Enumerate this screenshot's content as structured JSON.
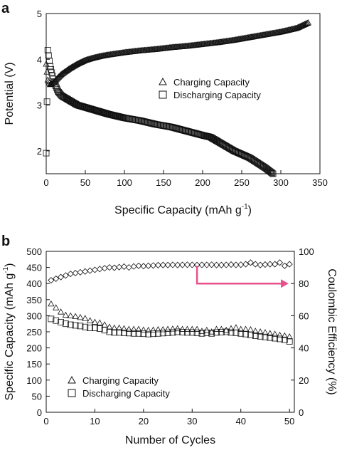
{
  "chart_data": [
    {
      "panel_label": "a",
      "type": "scatter",
      "xlabel": "Specific Capacity (mAh g",
      "xlabel_sup": "-1",
      "xlabel_tail": ")",
      "ylabel": "Potential (V)",
      "xlim": [
        0,
        350
      ],
      "ylim": [
        1.5,
        5
      ],
      "xticks": [
        "0",
        "50",
        "100",
        "150",
        "200",
        "250",
        "300",
        "350"
      ],
      "yticks": [
        "2",
        "3",
        "4",
        "5"
      ],
      "grid": false,
      "legend_position": "center-right",
      "series": [
        {
          "name": "Charging Capacity",
          "marker": "triangle",
          "x": [
            0,
            2,
            5,
            10,
            15,
            20,
            30,
            40,
            50,
            60,
            70,
            80,
            100,
            120,
            140,
            160,
            180,
            200,
            220,
            240,
            260,
            280,
            300,
            320,
            335
          ],
          "y": [
            3.9,
            3.55,
            3.45,
            3.5,
            3.6,
            3.68,
            3.8,
            3.9,
            3.98,
            4.03,
            4.07,
            4.1,
            4.15,
            4.19,
            4.22,
            4.26,
            4.29,
            4.33,
            4.37,
            4.42,
            4.48,
            4.54,
            4.6,
            4.68,
            4.8
          ]
        },
        {
          "name": "Discharging Capacity",
          "marker": "square",
          "x": [
            0,
            2,
            5,
            10,
            15,
            20,
            30,
            40,
            50,
            60,
            70,
            80,
            90,
            100,
            120,
            140,
            160,
            180,
            200,
            210,
            220,
            240,
            260,
            280,
            290
          ],
          "y": [
            1.95,
            4.2,
            3.85,
            3.5,
            3.3,
            3.2,
            3.1,
            3.0,
            2.95,
            2.9,
            2.85,
            2.8,
            2.76,
            2.72,
            2.66,
            2.58,
            2.52,
            2.43,
            2.34,
            2.3,
            2.2,
            2.0,
            1.85,
            1.63,
            1.5
          ]
        }
      ]
    },
    {
      "panel_label": "b",
      "type": "scatter",
      "xlabel": "Number of Cycles",
      "ylabel": "Specific Capacity (mAh g",
      "ylabel_sup": "-1",
      "ylabel_tail": ")",
      "y2label": "Coulombic Efficiency (%)",
      "xlim": [
        0,
        51
      ],
      "ylim": [
        0,
        500
      ],
      "y2lim": [
        0,
        100
      ],
      "xticks": [
        "0",
        "10",
        "20",
        "30",
        "40",
        "50"
      ],
      "yticks": [
        "0",
        "50",
        "100",
        "150",
        "200",
        "250",
        "300",
        "350",
        "400",
        "450",
        "500"
      ],
      "y2ticks": [
        "0",
        "20",
        "40",
        "60",
        "80",
        "100"
      ],
      "grid": false,
      "legend_position": "bottom-left",
      "arrow_color": "#e8528c",
      "series": [
        {
          "name": "Charging Capacity",
          "marker": "triangle",
          "axis": "left",
          "x": [
            1,
            2,
            3,
            4,
            5,
            6,
            7,
            8,
            9,
            10,
            11,
            12,
            13,
            14,
            15,
            16,
            17,
            18,
            19,
            20,
            21,
            22,
            23,
            24,
            25,
            26,
            27,
            28,
            29,
            30,
            31,
            32,
            33,
            34,
            35,
            36,
            37,
            38,
            39,
            40,
            41,
            42,
            43,
            44,
            45,
            46,
            47,
            48,
            49,
            50
          ],
          "y": [
            337,
            325,
            312,
            302,
            300,
            298,
            295,
            292,
            285,
            280,
            278,
            272,
            265,
            262,
            262,
            260,
            258,
            258,
            258,
            256,
            255,
            256,
            257,
            257,
            258,
            259,
            260,
            258,
            258,
            258,
            258,
            252,
            255,
            250,
            258,
            258,
            255,
            260,
            263,
            258,
            258,
            257,
            252,
            250,
            248,
            245,
            243,
            240,
            238,
            235
          ]
        },
        {
          "name": "Discharging Capacity",
          "marker": "square",
          "axis": "left",
          "x": [
            1,
            2,
            3,
            4,
            5,
            6,
            7,
            8,
            9,
            10,
            11,
            12,
            13,
            14,
            15,
            16,
            17,
            18,
            19,
            20,
            21,
            22,
            23,
            24,
            25,
            26,
            27,
            28,
            29,
            30,
            31,
            32,
            33,
            34,
            35,
            36,
            37,
            38,
            39,
            40,
            41,
            42,
            43,
            44,
            45,
            46,
            47,
            48,
            49,
            50
          ],
          "y": [
            290,
            285,
            280,
            275,
            272,
            270,
            268,
            265,
            262,
            262,
            260,
            255,
            250,
            248,
            248,
            247,
            246,
            245,
            245,
            244,
            243,
            244,
            245,
            246,
            247,
            248,
            250,
            249,
            248,
            248,
            247,
            245,
            247,
            245,
            248,
            249,
            250,
            248,
            247,
            245,
            243,
            240,
            238,
            236,
            234,
            232,
            230,
            228,
            225,
            220
          ]
        },
        {
          "name": "",
          "marker": "diamond",
          "axis": "right",
          "x": [
            1,
            2,
            3,
            4,
            5,
            6,
            7,
            8,
            9,
            10,
            11,
            12,
            13,
            14,
            15,
            16,
            17,
            18,
            19,
            20,
            21,
            22,
            23,
            24,
            25,
            26,
            27,
            28,
            29,
            30,
            31,
            32,
            33,
            34,
            35,
            36,
            37,
            38,
            39,
            40,
            41,
            42,
            43,
            44,
            45,
            46,
            47,
            48,
            49,
            50
          ],
          "y": [
            82,
            83,
            84,
            85,
            86,
            86.5,
            87,
            87.5,
            88,
            88.5,
            89,
            89.5,
            90,
            89.8,
            90.2,
            90.5,
            90,
            90.6,
            91,
            90.8,
            91,
            91.2,
            91.4,
            91.5,
            91.5,
            91.6,
            91.5,
            91.6,
            91.7,
            91.6,
            91.5,
            91.6,
            91.6,
            91.7,
            91.5,
            91.5,
            91.6,
            91.8,
            91.6,
            91.7,
            92,
            93,
            92,
            91.5,
            91.8,
            92,
            92,
            93,
            91,
            92
          ]
        }
      ]
    }
  ]
}
